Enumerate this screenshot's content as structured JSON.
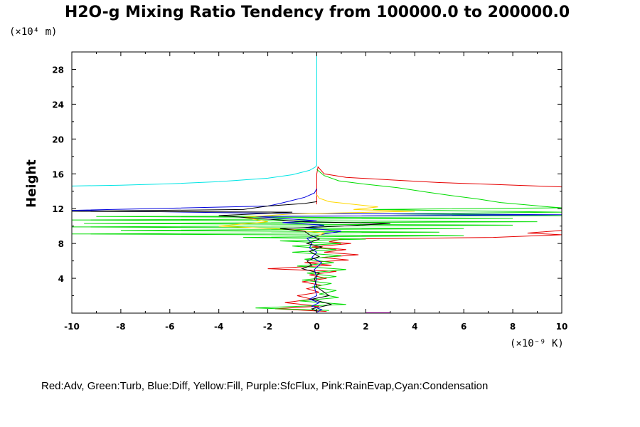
{
  "chart_data": {
    "type": "line",
    "title": "H2O-g Mixing Ratio Tendency from 100000.0 to 200000.0",
    "ylabel": "Height",
    "y_unit": "(×10⁴ m)",
    "x_unit": "(×10⁻⁹ K)",
    "xlim": [
      -10,
      10
    ],
    "ylim": [
      0,
      30
    ],
    "x_ticks": [
      -10,
      -8,
      -6,
      -4,
      -2,
      0,
      2,
      4,
      6,
      8,
      10
    ],
    "y_ticks": [
      4,
      8,
      12,
      16,
      20,
      24,
      28
    ],
    "grid": false,
    "legend_text": "Red:Adv, Green:Turb, Blue:Diff, Yellow:Fill, Purple:SfcFlux, Pink:RainEvap,Cyan:Condensation",
    "legend_placement": "bottom",
    "series": [
      {
        "key": "condensation",
        "color": "#00e5e5",
        "points": [
          [
            0,
            30
          ],
          [
            0,
            25
          ],
          [
            0,
            20
          ],
          [
            0,
            18
          ],
          [
            0,
            17
          ],
          [
            -0.05,
            16.8
          ],
          [
            -0.3,
            16.4
          ],
          [
            -1,
            15.9
          ],
          [
            -2,
            15.5
          ],
          [
            -4,
            15.1
          ],
          [
            -6,
            14.85
          ],
          [
            -8,
            14.7
          ],
          [
            -10,
            14.6
          ]
        ]
      },
      {
        "key": "adv",
        "color": "#e60000",
        "points": [
          [
            0,
            12.5
          ],
          [
            0,
            14
          ],
          [
            0,
            16
          ],
          [
            0.05,
            16.8
          ],
          [
            0.3,
            16
          ],
          [
            1.2,
            15.6
          ],
          [
            3,
            15.3
          ],
          [
            5,
            15.0
          ],
          [
            7,
            14.8
          ],
          [
            9,
            14.6
          ],
          [
            10,
            14.5
          ],
          [
            10,
            9.5
          ],
          [
            8.6,
            9.2
          ],
          [
            10,
            9.0
          ],
          [
            7.2,
            8.7
          ],
          [
            1,
            8.5
          ],
          [
            0.5,
            8.2
          ],
          [
            1.4,
            8.0
          ],
          [
            -0.2,
            7.6
          ],
          [
            1.2,
            7.3
          ],
          [
            0.3,
            7.0
          ],
          [
            1.7,
            6.7
          ],
          [
            0.2,
            6.4
          ],
          [
            1.3,
            6.1
          ],
          [
            -0.5,
            5.8
          ],
          [
            0.6,
            5.5
          ],
          [
            -2,
            5.1
          ],
          [
            0.8,
            4.8
          ],
          [
            -0.3,
            4.4
          ],
          [
            0.4,
            4.0
          ],
          [
            -0.6,
            3.6
          ],
          [
            0.2,
            3.2
          ],
          [
            -0.4,
            2.8
          ],
          [
            0.1,
            2.4
          ],
          [
            -0.8,
            2.0
          ],
          [
            -0.2,
            1.6
          ],
          [
            -1.3,
            1.2
          ],
          [
            0.1,
            0.8
          ],
          [
            -1.7,
            0.5
          ],
          [
            0.4,
            0.2
          ]
        ]
      },
      {
        "key": "turb",
        "color": "#00dd00",
        "points": [
          [
            0,
            16.5
          ],
          [
            0.3,
            15.8
          ],
          [
            0.9,
            15.2
          ],
          [
            2,
            14.8
          ],
          [
            3.3,
            14.4
          ],
          [
            4.5,
            13.9
          ],
          [
            5.5,
            13.5
          ],
          [
            6.6,
            13.1
          ],
          [
            7.5,
            12.7
          ],
          [
            9.5,
            12.2
          ],
          [
            10,
            12.1
          ],
          [
            2.3,
            11.9
          ],
          [
            10,
            11.6
          ],
          [
            3,
            11.4
          ],
          [
            10,
            11.2
          ],
          [
            -9,
            11.1
          ],
          [
            8,
            10.9
          ],
          [
            -10,
            10.7
          ],
          [
            9,
            10.5
          ],
          [
            -9.5,
            10.3
          ],
          [
            8,
            10.1
          ],
          [
            -10,
            9.9
          ],
          [
            6,
            9.7
          ],
          [
            -8,
            9.5
          ],
          [
            5,
            9.3
          ],
          [
            -10,
            9.1
          ],
          [
            6,
            8.9
          ],
          [
            -3,
            8.7
          ],
          [
            2,
            8.5
          ],
          [
            -1.5,
            8.3
          ],
          [
            1,
            8.0
          ],
          [
            -1,
            7.7
          ],
          [
            0.8,
            7.3
          ],
          [
            -1,
            7.0
          ],
          [
            1,
            6.6
          ],
          [
            -0.5,
            6.2
          ],
          [
            0.7,
            5.8
          ],
          [
            -0.8,
            5.4
          ],
          [
            1.2,
            5.0
          ],
          [
            -0.4,
            4.6
          ],
          [
            0.8,
            4.2
          ],
          [
            -0.6,
            3.8
          ],
          [
            0.6,
            3.4
          ],
          [
            -0.2,
            3.0
          ],
          [
            0.8,
            2.6
          ],
          [
            0.1,
            2.2
          ],
          [
            0.9,
            1.8
          ],
          [
            -0.7,
            1.4
          ],
          [
            1.2,
            1.0
          ],
          [
            -2.5,
            0.6
          ],
          [
            0.5,
            0.3
          ]
        ]
      },
      {
        "key": "diff",
        "color": "#0000dd",
        "points": [
          [
            0,
            14.3
          ],
          [
            -0.1,
            13.8
          ],
          [
            -0.5,
            13.3
          ],
          [
            -1.5,
            12.6
          ],
          [
            -2,
            12.3
          ],
          [
            -10,
            11.8
          ],
          [
            -3,
            11.5
          ],
          [
            10,
            11.3
          ],
          [
            -2.5,
            11.1
          ],
          [
            -1,
            10.8
          ],
          [
            0,
            10.6
          ],
          [
            -1.4,
            10.4
          ],
          [
            0.3,
            10.1
          ],
          [
            -0.5,
            9.8
          ],
          [
            1,
            9.4
          ],
          [
            0.3,
            9.1
          ],
          [
            -0.4,
            8.6
          ],
          [
            -0.2,
            8.0
          ],
          [
            -0.3,
            7.5
          ],
          [
            0,
            7.0
          ],
          [
            -0.2,
            6.4
          ],
          [
            0.2,
            5.8
          ],
          [
            -0.1,
            5.0
          ],
          [
            0,
            4.0
          ],
          [
            -0.1,
            3.0
          ],
          [
            0,
            2.0
          ],
          [
            -0.3,
            1.6
          ],
          [
            0.1,
            1.2
          ],
          [
            -0.2,
            0.8
          ],
          [
            0.2,
            0.4
          ],
          [
            0,
            0.1
          ]
        ]
      },
      {
        "key": "fill",
        "color": "#ffd800",
        "points": [
          [
            0,
            13.6
          ],
          [
            0.1,
            13.2
          ],
          [
            0.5,
            12.8
          ],
          [
            1.5,
            12.5
          ],
          [
            2.5,
            12.2
          ],
          [
            1.5,
            11.9
          ],
          [
            4,
            11.7
          ],
          [
            -1,
            11.4
          ],
          [
            -3,
            11.0
          ],
          [
            -2,
            10.5
          ],
          [
            -4,
            10.0
          ],
          [
            -1,
            9.6
          ],
          [
            0.3,
            9.2
          ],
          [
            0,
            8.8
          ]
        ]
      },
      {
        "key": "black",
        "color": "#000000",
        "points": [
          [
            0,
            12.8
          ],
          [
            -0.5,
            12.6
          ],
          [
            -2,
            12.3
          ],
          [
            -3,
            11.9
          ],
          [
            -10,
            11.7
          ],
          [
            -1,
            11.6
          ],
          [
            -4,
            11.2
          ],
          [
            -2,
            10.8
          ],
          [
            -0.5,
            10.5
          ],
          [
            3,
            10.3
          ],
          [
            1,
            10.0
          ],
          [
            -1.5,
            9.7
          ],
          [
            -0.5,
            9.4
          ],
          [
            -0.3,
            9.0
          ],
          [
            0.1,
            8.5
          ],
          [
            -0.4,
            8.0
          ],
          [
            0.2,
            7.6
          ],
          [
            -0.3,
            7.1
          ],
          [
            0.1,
            6.5
          ],
          [
            -0.4,
            6.0
          ],
          [
            -0.2,
            5.5
          ],
          [
            -0.6,
            5.1
          ],
          [
            0.1,
            4.6
          ],
          [
            -0.1,
            4.0
          ],
          [
            0,
            3.0
          ],
          [
            0.5,
            2.0
          ],
          [
            -0.2,
            1.6
          ],
          [
            0.6,
            1.0
          ],
          [
            -0.2,
            0.5
          ],
          [
            0,
            0.2
          ]
        ]
      },
      {
        "key": "sfcflux",
        "color": "#e000e0",
        "points": [
          [
            2.0,
            0.05
          ],
          [
            3.0,
            0.05
          ]
        ]
      }
    ]
  }
}
